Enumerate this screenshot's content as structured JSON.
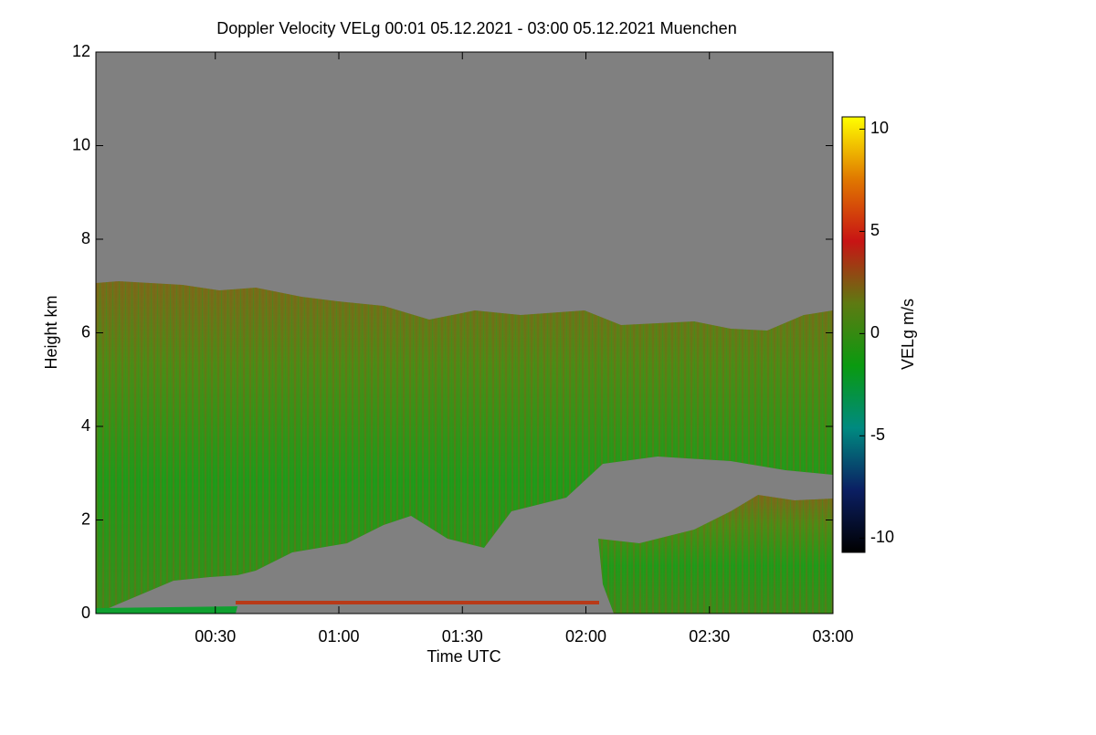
{
  "chart_data": {
    "type": "heatmap",
    "title": "Doppler Velocity VELg   00:01 05.12.2021 - 03:00 05.12.2021 Muenchen",
    "x_label": "Time UTC",
    "y_label": "Height km",
    "colorbar_label": "VELg m/s",
    "xlim": [
      1,
      180
    ],
    "xticks": [
      {
        "value": 30,
        "label": "00:30"
      },
      {
        "value": 60,
        "label": "01:00"
      },
      {
        "value": 90,
        "label": "01:30"
      },
      {
        "value": 120,
        "label": "02:00"
      },
      {
        "value": 150,
        "label": "02:30"
      },
      {
        "value": 180,
        "label": "03:00"
      }
    ],
    "ylim": [
      0,
      12
    ],
    "yticks": [
      0,
      2,
      4,
      6,
      8,
      10,
      12
    ],
    "zlim": [
      -10.7,
      10.6
    ],
    "zticks": [
      -10,
      -5,
      0,
      5,
      10
    ],
    "colormap": [
      "#000000",
      "#0b1f63",
      "#008a80",
      "#0a9a10",
      "#5e7a12",
      "#c81414",
      "#e07800",
      "#ffff00"
    ],
    "nodata_color": "#808080"
  }
}
